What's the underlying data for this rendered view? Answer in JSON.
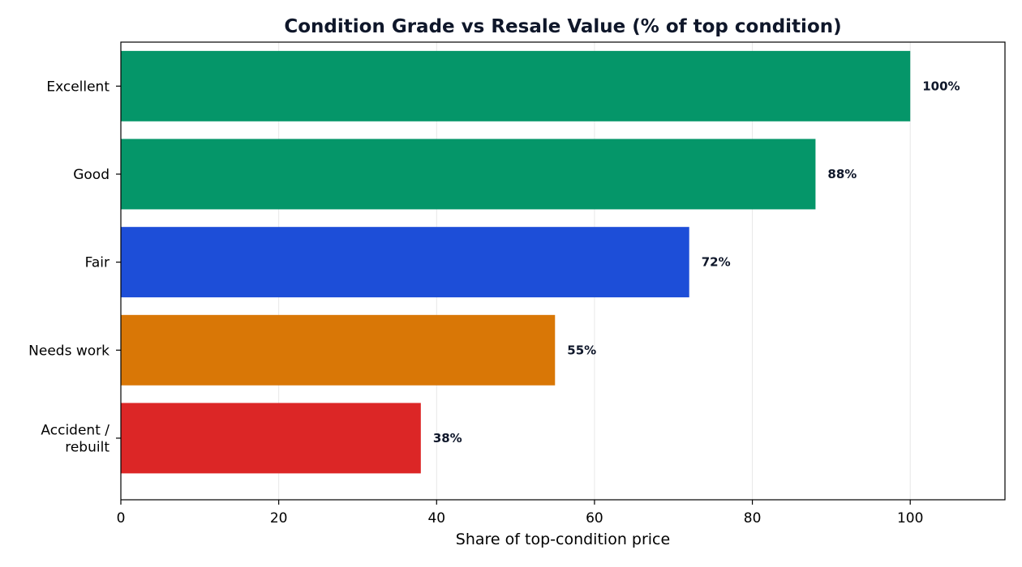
{
  "chart_data": {
    "type": "bar",
    "orientation": "horizontal",
    "title": "Condition Grade vs Resale Value (% of top condition)",
    "xlabel": "Share of top-condition price",
    "ylabel": "",
    "xlim": [
      0,
      112
    ],
    "xticks": [
      0,
      20,
      40,
      60,
      80,
      100
    ],
    "grid": "x",
    "categories": [
      [
        "Excellent"
      ],
      [
        "Good"
      ],
      [
        "Fair"
      ],
      [
        "Needs work"
      ],
      [
        "Accident /",
        "rebuilt"
      ]
    ],
    "values": [
      100,
      88,
      72,
      55,
      38
    ],
    "value_labels": [
      "100%",
      "88%",
      "72%",
      "55%",
      "38%"
    ],
    "colors": [
      "#059669",
      "#059669",
      "#1d4ed8",
      "#d97706",
      "#dc2626"
    ]
  }
}
